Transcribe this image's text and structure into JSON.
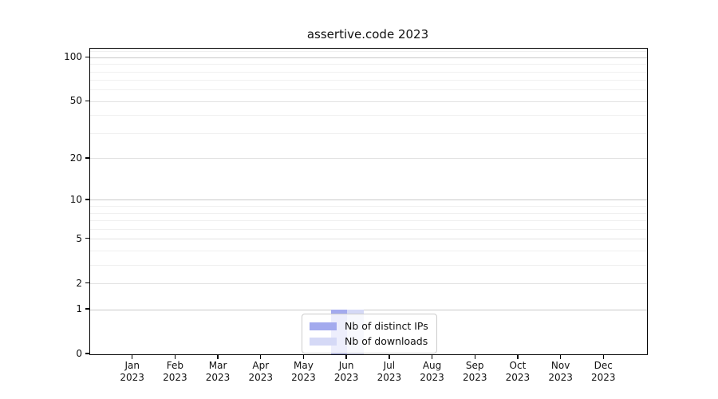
{
  "chart_data": {
    "type": "bar",
    "title": "assertive.code 2023",
    "categories": [
      "Jan",
      "Feb",
      "Mar",
      "Apr",
      "May",
      "Jun",
      "Jul",
      "Aug",
      "Sep",
      "Oct",
      "Nov",
      "Dec"
    ],
    "category_year": "2023",
    "series": [
      {
        "name": "Nb of distinct IPs",
        "color": "#a3aaee",
        "values": [
          0,
          0,
          0,
          0,
          0,
          1,
          0,
          0,
          0,
          0,
          0,
          0
        ]
      },
      {
        "name": "Nb of downloads",
        "color": "#d5d9f6",
        "values": [
          0,
          0,
          0,
          0,
          0,
          1,
          0,
          0,
          0,
          0,
          0,
          0
        ]
      }
    ],
    "xlabel": "",
    "ylabel": "",
    "yscale": "log1p",
    "ylim": [
      0,
      115.3
    ],
    "yticks": [
      0,
      1,
      2,
      5,
      10,
      20,
      50,
      100
    ],
    "yticks_strong": [
      1,
      10,
      100
    ],
    "yticks_mid": [
      2,
      5,
      20,
      50
    ],
    "yticks_minor": [
      3,
      4,
      6,
      7,
      8,
      9,
      30,
      40,
      60,
      70,
      80,
      90,
      110
    ],
    "grid": true,
    "legend_position": "lower center",
    "colors": {
      "grid_major": "#c9c9c9",
      "grid_mid": "#e2e2e2",
      "grid_minor": "#f0f0f0",
      "axis": "#000000",
      "text": "#111111",
      "legend_border": "#cccccc",
      "background": "#ffffff"
    }
  }
}
